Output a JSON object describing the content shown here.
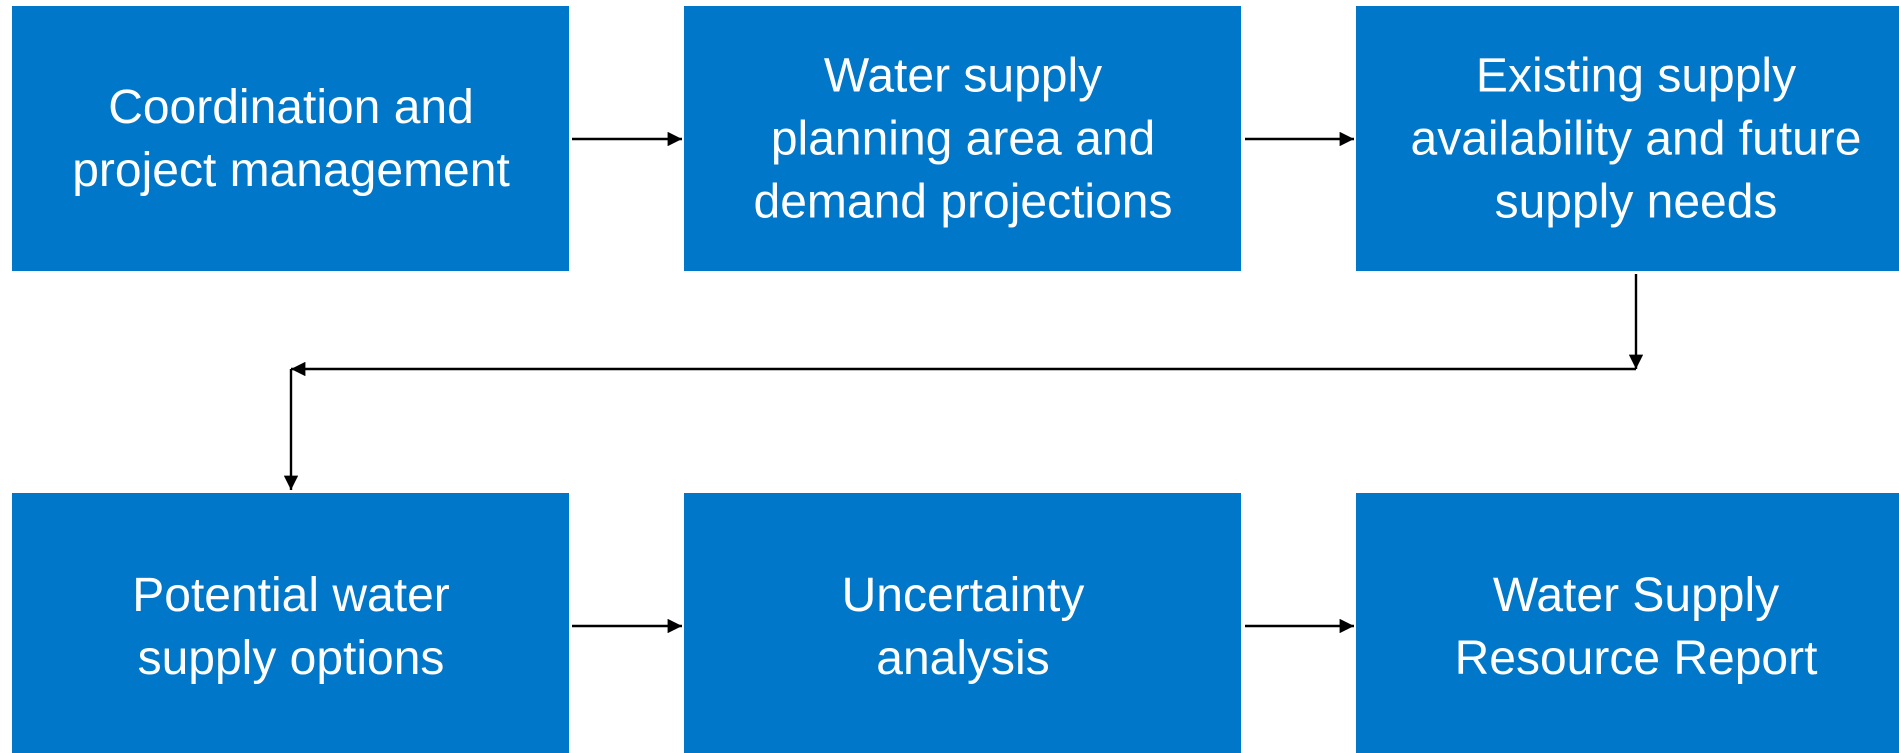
{
  "nodes": [
    {
      "lines": [
        "Coordination and",
        "project management"
      ]
    },
    {
      "lines": [
        "Water supply",
        "planning area and",
        "demand projections"
      ]
    },
    {
      "lines": [
        "Existing supply",
        "availability and future",
        "supply needs"
      ]
    },
    {
      "lines": [
        "Potential water",
        "supply options"
      ]
    },
    {
      "lines": [
        "Uncertainty",
        "analysis"
      ]
    },
    {
      "lines": [
        "Water Supply",
        "Resource Report"
      ]
    }
  ]
}
